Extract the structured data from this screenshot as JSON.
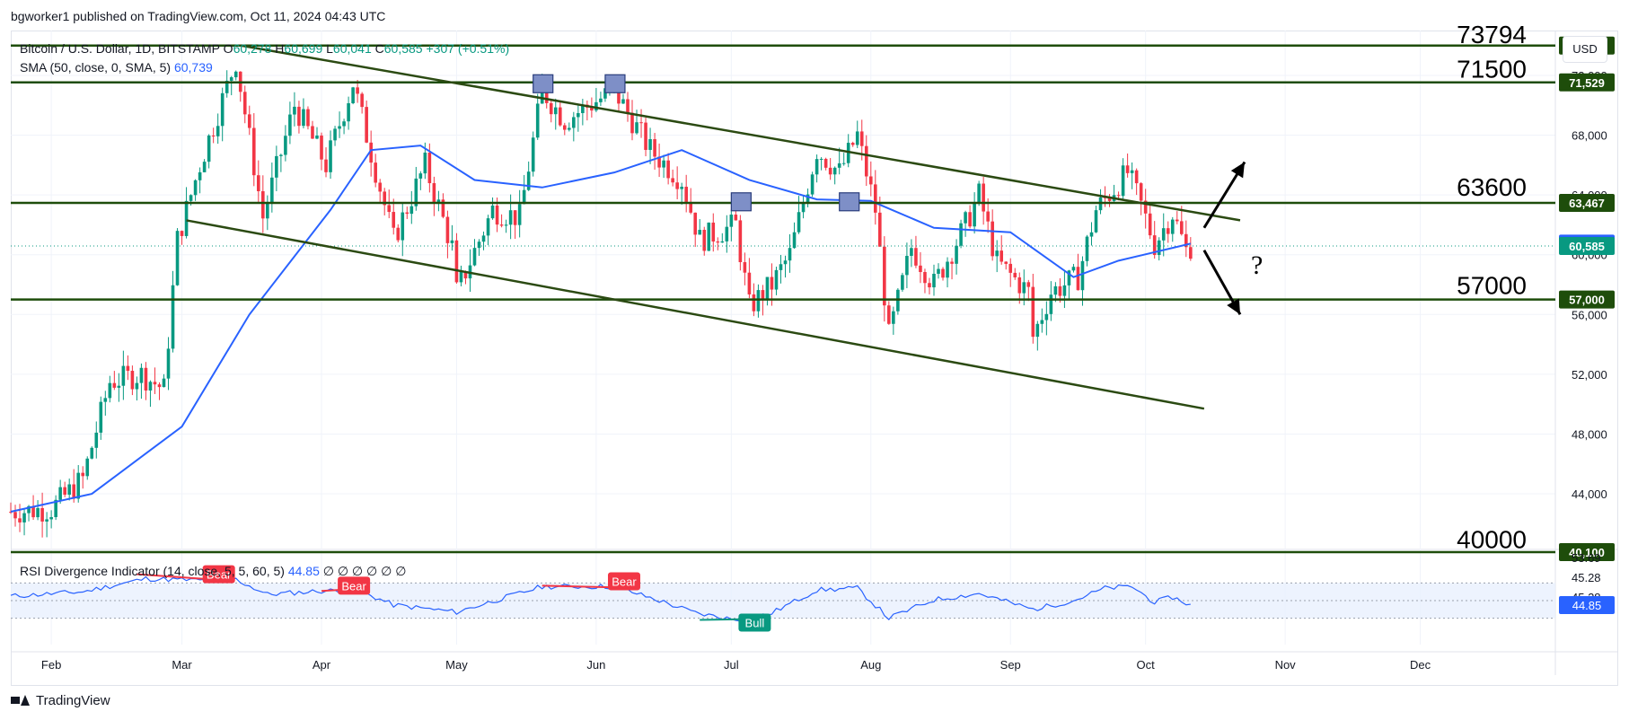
{
  "header": {
    "publisher": "bgworker1 published on TradingView.com, Oct 11, 2024 04:43 UTC"
  },
  "legend": {
    "symbol": "Bitcoin / U.S. Dollar, 1D, BITSTAMP",
    "o_label": "O",
    "o": "60,278",
    "h_label": "H",
    "h": "60,699",
    "l_label": "L",
    "l": "60,041",
    "c_label": "C",
    "c": "60,585",
    "change": "+307 (+0.51%)",
    "sma_label": "SMA (50, close, 0, SMA, 5)",
    "sma": "60,739"
  },
  "rsi_legend": {
    "label": "RSI Divergence Indicator (14, close, 5, 5, 60, 5)",
    "value": "44.85",
    "zeros": "∅ ∅ ∅ ∅       ∅         ∅"
  },
  "currency_button": "USD",
  "footer": {
    "brand": "TradingView"
  },
  "colors": {
    "up": "#089981",
    "down": "#f23645",
    "sma": "#2962ff",
    "level": "#1e4d0b",
    "channel": "#2b4a12",
    "rsi": "#2962ff"
  },
  "chart_data": {
    "type": "candlestick",
    "title": "",
    "x_ticks": [
      "Feb",
      "Mar",
      "Apr",
      "May",
      "Jun",
      "Jul",
      "Aug",
      "Sep",
      "Oct",
      "Nov",
      "Dec"
    ],
    "y_ticks": [
      "72,000",
      "68,000",
      "64,000",
      "60,000",
      "56,000",
      "52,000",
      "48,000",
      "44,000"
    ],
    "ylim": [
      41000,
      75000
    ],
    "price_badges": [
      {
        "text": "73,994",
        "value": 73994,
        "color": "#1e4d0b"
      },
      {
        "text": "71,529",
        "value": 71529,
        "color": "#1e4d0b"
      },
      {
        "text": "63,467",
        "value": 63467,
        "color": "#1e4d0b"
      },
      {
        "text": "60,739",
        "value": 60739,
        "color": "#2962ff"
      },
      {
        "text": "60,585",
        "value": 60585,
        "color": "#089981"
      },
      {
        "text": "57,000",
        "value": 57000,
        "color": "#1e4d0b"
      },
      {
        "text": "40,100",
        "value": 40100,
        "color": "#1e4d0b"
      }
    ],
    "level_labels": [
      {
        "text": "73794",
        "value": 73794
      },
      {
        "text": "71500",
        "value": 71500
      },
      {
        "text": "63600",
        "value": 63600
      },
      {
        "text": "57000",
        "value": 57000
      },
      {
        "text": "40000",
        "value": 40000
      }
    ],
    "closes_anchor_points": [
      [
        "2024-01-23",
        42800
      ],
      [
        "2024-02-01",
        43000
      ],
      [
        "2024-02-08",
        45000
      ],
      [
        "2024-02-14",
        51500
      ],
      [
        "2024-02-21",
        52000
      ],
      [
        "2024-02-26",
        51000
      ],
      [
        "2024-02-29",
        61000
      ],
      [
        "2024-03-05",
        66000
      ],
      [
        "2024-03-13",
        73000
      ],
      [
        "2024-03-19",
        62500
      ],
      [
        "2024-03-26",
        70000
      ],
      [
        "2024-04-02",
        66000
      ],
      [
        "2024-04-08",
        71500
      ],
      [
        "2024-04-17",
        61000
      ],
      [
        "2024-04-24",
        66000
      ],
      [
        "2024-04-30",
        60500
      ],
      [
        "2024-05-01",
        57500
      ],
      [
        "2024-05-09",
        63000
      ],
      [
        "2024-05-15",
        62500
      ],
      [
        "2024-05-20",
        71000
      ],
      [
        "2024-05-25",
        69000
      ],
      [
        "2024-06-05",
        71000
      ],
      [
        "2024-06-13",
        67000
      ],
      [
        "2024-06-20",
        65000
      ],
      [
        "2024-06-24",
        61000
      ],
      [
        "2024-07-02",
        62000
      ],
      [
        "2024-07-05",
        56500
      ],
      [
        "2024-07-10",
        58000
      ],
      [
        "2024-07-14",
        60000
      ],
      [
        "2024-07-20",
        67000
      ],
      [
        "2024-07-25",
        65500
      ],
      [
        "2024-07-29",
        68000
      ],
      [
        "2024-08-02",
        63000
      ],
      [
        "2024-08-05",
        54500
      ],
      [
        "2024-08-10",
        60500
      ],
      [
        "2024-08-15",
        58000
      ],
      [
        "2024-08-22",
        62000
      ],
      [
        "2024-08-25",
        64000
      ],
      [
        "2024-08-29",
        59500
      ],
      [
        "2024-09-05",
        57500
      ],
      [
        "2024-09-06",
        54500
      ],
      [
        "2024-09-10",
        57500
      ],
      [
        "2024-09-16",
        58500
      ],
      [
        "2024-09-20",
        63000
      ],
      [
        "2024-09-27",
        65500
      ],
      [
        "2024-09-30",
        63300
      ],
      [
        "2024-10-03",
        60700
      ],
      [
        "2024-10-07",
        62800
      ],
      [
        "2024-10-10",
        60278
      ],
      [
        "2024-10-11",
        60585
      ]
    ],
    "sma50_anchor_points": [
      [
        "2024-01-23",
        42800
      ],
      [
        "2024-02-10",
        44000
      ],
      [
        "2024-03-01",
        48500
      ],
      [
        "2024-03-16",
        56000
      ],
      [
        "2024-04-03",
        63000
      ],
      [
        "2024-04-12",
        67000
      ],
      [
        "2024-04-23",
        67300
      ],
      [
        "2024-05-05",
        65000
      ],
      [
        "2024-05-20",
        64500
      ],
      [
        "2024-06-05",
        65500
      ],
      [
        "2024-06-20",
        67000
      ],
      [
        "2024-07-05",
        65000
      ],
      [
        "2024-07-20",
        63700
      ],
      [
        "2024-08-01",
        63600
      ],
      [
        "2024-08-15",
        61800
      ],
      [
        "2024-09-01",
        61500
      ],
      [
        "2024-09-15",
        58500
      ],
      [
        "2024-09-25",
        59600
      ],
      [
        "2024-10-11",
        60739
      ]
    ],
    "channel_upper": [
      [
        "2024-03-14",
        74000
      ],
      [
        "2024-10-22",
        62300
      ]
    ],
    "channel_lower": [
      [
        "2024-03-02",
        62300
      ],
      [
        "2024-10-14",
        49700
      ]
    ],
    "horizontal_levels": [
      73994,
      71529,
      63467,
      57000,
      40100
    ],
    "boxes": [
      [
        "2024-05-20",
        71500
      ],
      [
        "2024-06-05",
        71500
      ],
      [
        "2024-07-03",
        63600
      ],
      [
        "2024-07-27",
        63600
      ]
    ],
    "arrows": [
      {
        "from": [
          "2024-10-14",
          61800
        ],
        "to": [
          "2024-10-23",
          66200
        ]
      },
      {
        "from": [
          "2024-10-14",
          60300
        ],
        "to": [
          "2024-10-22",
          56000
        ]
      }
    ],
    "question_mark": {
      "text": "?",
      "at": [
        "2024-10-22",
        59800
      ]
    },
    "rsi": {
      "ticks": [
        "53.69",
        "45.28",
        "45.28",
        "44.85"
      ],
      "band": [
        30,
        70
      ],
      "last": 44.85,
      "anchor_points": [
        [
          "2024-01-23",
          55
        ],
        [
          "2024-02-08",
          60
        ],
        [
          "2024-02-22",
          75
        ],
        [
          "2024-03-05",
          73
        ],
        [
          "2024-03-13",
          74
        ],
        [
          "2024-03-20",
          57
        ],
        [
          "2024-04-01",
          61
        ],
        [
          "2024-04-09",
          62
        ],
        [
          "2024-04-17",
          45
        ],
        [
          "2024-05-01",
          37
        ],
        [
          "2024-05-20",
          66
        ],
        [
          "2024-06-05",
          66
        ],
        [
          "2024-06-15",
          50
        ],
        [
          "2024-06-23",
          36
        ],
        [
          "2024-07-01",
          29
        ],
        [
          "2024-07-05",
          29
        ],
        [
          "2024-07-10",
          36
        ],
        [
          "2024-07-20",
          62
        ],
        [
          "2024-07-29",
          64
        ],
        [
          "2024-08-05",
          30
        ],
        [
          "2024-08-15",
          51
        ],
        [
          "2024-08-25",
          58
        ],
        [
          "2024-09-06",
          40
        ],
        [
          "2024-09-15",
          50
        ],
        [
          "2024-09-22",
          64
        ],
        [
          "2024-09-28",
          66
        ],
        [
          "2024-10-03",
          48
        ],
        [
          "2024-10-07",
          54
        ],
        [
          "2024-10-11",
          44.85
        ]
      ],
      "divergence_labels": [
        {
          "text": "Bear",
          "at": [
            "2024-03-09",
            80
          ],
          "color": "#f23645"
        },
        {
          "text": "Bear",
          "at": [
            "2024-04-08",
            67
          ],
          "color": "#f23645"
        },
        {
          "text": "Bear",
          "at": [
            "2024-06-07",
            72
          ],
          "color": "#f23645"
        },
        {
          "text": "Bull",
          "at": [
            "2024-07-06",
            25
          ],
          "color": "#089981"
        }
      ],
      "divergence_lines": [
        {
          "from": [
            "2024-02-20",
            80
          ],
          "to": [
            "2024-03-08",
            74
          ],
          "color": "#f23645"
        },
        {
          "from": [
            "2024-04-01",
            61
          ],
          "to": [
            "2024-04-08",
            63
          ],
          "color": "#f23645"
        },
        {
          "from": [
            "2024-05-20",
            67
          ],
          "to": [
            "2024-06-05",
            65
          ],
          "color": "#f23645"
        },
        {
          "from": [
            "2024-06-24",
            28
          ],
          "to": [
            "2024-07-05",
            29
          ],
          "color": "#089981"
        }
      ]
    }
  }
}
